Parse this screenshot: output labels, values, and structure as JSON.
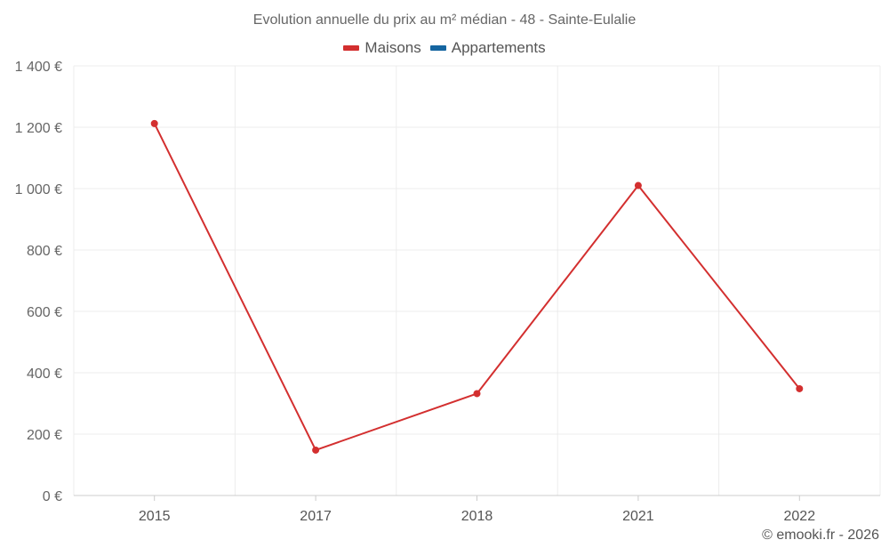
{
  "chart_data": {
    "type": "line",
    "title": "Evolution annuelle du prix au m² médian - 48 - Sainte-Eulalie",
    "xlabel": "",
    "ylabel": "",
    "categories": [
      "2015",
      "2017",
      "2018",
      "2021",
      "2022"
    ],
    "series": [
      {
        "name": "Maisons",
        "color": "#d32f2f",
        "values": [
          1212,
          148,
          332,
          1010,
          348
        ]
      },
      {
        "name": "Appartements",
        "color": "#1565a0",
        "values": [
          null,
          null,
          null,
          null,
          null
        ]
      }
    ],
    "ylim": [
      0,
      1400
    ],
    "yticks": [
      0,
      200,
      400,
      600,
      800,
      1000,
      1200,
      1400
    ],
    "ytick_labels": [
      "0 €",
      "200 €",
      "400 €",
      "600 €",
      "800 €",
      "1 000 €",
      "1 200 €",
      "1 400 €"
    ],
    "grid": true,
    "legend_position": "top-center"
  },
  "credit": "© emooki.fr - 2026"
}
